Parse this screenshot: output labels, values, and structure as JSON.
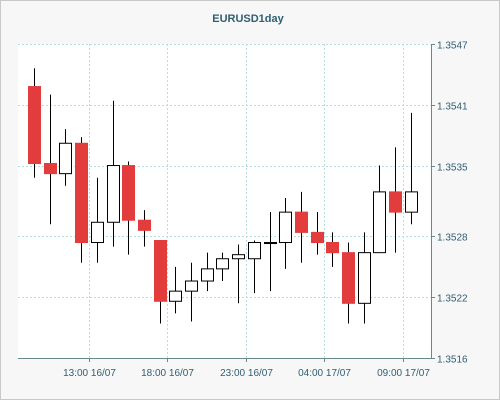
{
  "chart_data": {
    "type": "candlestick",
    "title": "EURUSD1day",
    "colors": {
      "bearish": "#e23c3c",
      "bullish": "#ffffff",
      "wick": "#000000",
      "grid": "#b7dede",
      "axis_text": "#2e5f73"
    },
    "ylim": [
      1.3516,
      1.3547
    ],
    "y_ticks": [
      "1.3547",
      "1.3541",
      "1.3535",
      "1.3528",
      "1.3522",
      "1.3516"
    ],
    "x_ticks": [
      {
        "index": 3.5,
        "label": "13:00 16/07"
      },
      {
        "index": 8.5,
        "label": "18:00 16/07"
      },
      {
        "index": 13.5,
        "label": "23:00 16/07"
      },
      {
        "index": 18.5,
        "label": "04:00 17/07"
      },
      {
        "index": 23.5,
        "label": "09:00 17/07"
      }
    ],
    "grid": true,
    "candles": [
      {
        "open": 1.35428,
        "high": 1.35446,
        "low": 1.35338,
        "close": 1.35352
      },
      {
        "open": 1.35352,
        "high": 1.3542,
        "low": 1.35292,
        "close": 1.35342
      },
      {
        "open": 1.35342,
        "high": 1.35386,
        "low": 1.3533,
        "close": 1.35372
      },
      {
        "open": 1.35372,
        "high": 1.35378,
        "low": 1.35254,
        "close": 1.35274
      },
      {
        "open": 1.35274,
        "high": 1.35338,
        "low": 1.35254,
        "close": 1.35294
      },
      {
        "open": 1.35294,
        "high": 1.35414,
        "low": 1.3527,
        "close": 1.3535
      },
      {
        "open": 1.3535,
        "high": 1.35354,
        "low": 1.35262,
        "close": 1.35296
      },
      {
        "open": 1.35296,
        "high": 1.35306,
        "low": 1.3527,
        "close": 1.35286
      },
      {
        "open": 1.35276,
        "high": 1.35276,
        "low": 1.35194,
        "close": 1.35216
      },
      {
        "open": 1.35216,
        "high": 1.3525,
        "low": 1.35204,
        "close": 1.35226
      },
      {
        "open": 1.35226,
        "high": 1.35254,
        "low": 1.35196,
        "close": 1.35236
      },
      {
        "open": 1.35236,
        "high": 1.35264,
        "low": 1.35226,
        "close": 1.35248
      },
      {
        "open": 1.35248,
        "high": 1.35264,
        "low": 1.35236,
        "close": 1.35258
      },
      {
        "open": 1.35258,
        "high": 1.35272,
        "low": 1.35214,
        "close": 1.35262
      },
      {
        "open": 1.35258,
        "high": 1.35276,
        "low": 1.35224,
        "close": 1.35274
      },
      {
        "open": 1.35274,
        "high": 1.35304,
        "low": 1.35226,
        "close": 1.35274
      },
      {
        "open": 1.35274,
        "high": 1.35318,
        "low": 1.35248,
        "close": 1.35304
      },
      {
        "open": 1.35304,
        "high": 1.35324,
        "low": 1.35254,
        "close": 1.35284
      },
      {
        "open": 1.35284,
        "high": 1.35304,
        "low": 1.35262,
        "close": 1.35274
      },
      {
        "open": 1.35274,
        "high": 1.35284,
        "low": 1.3525,
        "close": 1.35264
      },
      {
        "open": 1.35264,
        "high": 1.35274,
        "low": 1.35194,
        "close": 1.35214
      },
      {
        "open": 1.35214,
        "high": 1.35284,
        "low": 1.35194,
        "close": 1.35264
      },
      {
        "open": 1.35264,
        "high": 1.3535,
        "low": 1.35264,
        "close": 1.35324
      },
      {
        "open": 1.35324,
        "high": 1.35368,
        "low": 1.35264,
        "close": 1.35304
      },
      {
        "open": 1.35304,
        "high": 1.35402,
        "low": 1.35292,
        "close": 1.35324
      }
    ]
  }
}
